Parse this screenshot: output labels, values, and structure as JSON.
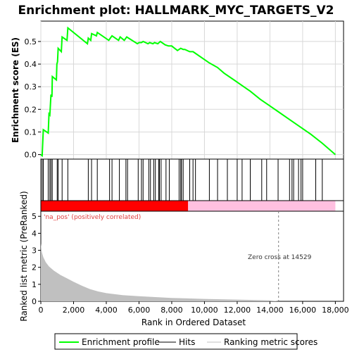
{
  "chart_data": {
    "title": "Enrichment plot: HALLMARK_MYC_TARGETS_V2",
    "x_axis": {
      "label": "Rank in Ordered Dataset",
      "range": [
        0,
        18500
      ],
      "ticks": [
        0,
        2000,
        4000,
        6000,
        8000,
        10000,
        12000,
        14000,
        16000,
        18000
      ],
      "tick_labels": [
        "0",
        "2,000",
        "4,000",
        "6,000",
        "8,000",
        "10,000",
        "12,000",
        "14,000",
        "16,000",
        "18,000"
      ]
    },
    "es_panel": {
      "type": "line",
      "ylabel": "Enrichment score (ES)",
      "ylim": [
        -0.02,
        0.59
      ],
      "yticks": [
        0.0,
        0.1,
        0.2,
        0.3,
        0.4,
        0.5
      ],
      "ytick_labels": [
        "0.0",
        "0.1",
        "0.2",
        "0.3",
        "0.4",
        "0.5"
      ],
      "grid": true,
      "series_name": "Enrichment profile",
      "color": "#00ff00",
      "points": [
        [
          0,
          0
        ],
        [
          80,
          -0.005
        ],
        [
          150,
          0.11
        ],
        [
          450,
          0.095
        ],
        [
          500,
          0.18
        ],
        [
          550,
          0.175
        ],
        [
          620,
          0.265
        ],
        [
          680,
          0.255
        ],
        [
          700,
          0.345
        ],
        [
          950,
          0.33
        ],
        [
          980,
          0.4
        ],
        [
          1020,
          0.41
        ],
        [
          1060,
          0.47
        ],
        [
          1250,
          0.455
        ],
        [
          1300,
          0.52
        ],
        [
          1600,
          0.505
        ],
        [
          1650,
          0.56
        ],
        [
          2850,
          0.49
        ],
        [
          2900,
          0.515
        ],
        [
          3050,
          0.505
        ],
        [
          3100,
          0.535
        ],
        [
          3400,
          0.525
        ],
        [
          3450,
          0.54
        ],
        [
          4150,
          0.505
        ],
        [
          4250,
          0.515
        ],
        [
          4350,
          0.525
        ],
        [
          4750,
          0.505
        ],
        [
          4850,
          0.52
        ],
        [
          5100,
          0.505
        ],
        [
          5250,
          0.52
        ],
        [
          5900,
          0.49
        ],
        [
          6000,
          0.495
        ],
        [
          6150,
          0.495
        ],
        [
          6250,
          0.5
        ],
        [
          6550,
          0.49
        ],
        [
          6650,
          0.495
        ],
        [
          6850,
          0.49
        ],
        [
          6950,
          0.495
        ],
        [
          7150,
          0.49
        ],
        [
          7300,
          0.5
        ],
        [
          7600,
          0.485
        ],
        [
          7800,
          0.48
        ],
        [
          8000,
          0.48
        ],
        [
          8350,
          0.46
        ],
        [
          8450,
          0.465
        ],
        [
          8550,
          0.47
        ],
        [
          8700,
          0.465
        ],
        [
          8800,
          0.465
        ],
        [
          9100,
          0.455
        ],
        [
          9300,
          0.455
        ],
        [
          9400,
          0.45
        ],
        [
          10300,
          0.405
        ],
        [
          10800,
          0.385
        ],
        [
          11200,
          0.36
        ],
        [
          11800,
          0.33
        ],
        [
          12300,
          0.305
        ],
        [
          12800,
          0.28
        ],
        [
          13400,
          0.245
        ],
        [
          13800,
          0.225
        ],
        [
          14500,
          0.19
        ],
        [
          15200,
          0.155
        ],
        [
          15800,
          0.125
        ],
        [
          16500,
          0.09
        ],
        [
          17200,
          0.05
        ],
        [
          18000,
          0.0
        ]
      ]
    },
    "hits_panel": {
      "legend_name": "Hits",
      "positions": [
        80,
        150,
        450,
        550,
        620,
        700,
        1000,
        1060,
        1300,
        1650,
        2900,
        3100,
        3450,
        4200,
        4350,
        4800,
        5200,
        5300,
        5950,
        6150,
        6250,
        6600,
        6700,
        6900,
        7000,
        7200,
        7250,
        7350,
        7650,
        7850,
        8450,
        8550,
        8600,
        8700,
        9100,
        9300,
        9450,
        10300,
        10800,
        11400,
        12000,
        12300,
        12800,
        13500,
        13800,
        14500,
        15200,
        15350,
        15450,
        15750,
        15900,
        16000,
        16800,
        17200
      ]
    },
    "ranking_panel": {
      "ylabel": "Ranked list metric (PreRanked)",
      "ylim": [
        0,
        5.3
      ],
      "yticks": [
        0,
        1,
        2,
        3,
        4,
        5
      ],
      "ytick_labels": [
        "0",
        "1",
        "2",
        "3",
        "4",
        "5"
      ],
      "legend_name": "Ranking metric scores",
      "curve": [
        [
          0,
          3.4
        ],
        [
          60,
          2.9
        ],
        [
          150,
          2.6
        ],
        [
          300,
          2.3
        ],
        [
          500,
          2.05
        ],
        [
          800,
          1.8
        ],
        [
          1200,
          1.55
        ],
        [
          1600,
          1.35
        ],
        [
          2000,
          1.15
        ],
        [
          2500,
          0.92
        ],
        [
          3000,
          0.72
        ],
        [
          3500,
          0.58
        ],
        [
          4000,
          0.48
        ],
        [
          5000,
          0.36
        ],
        [
          6000,
          0.3
        ],
        [
          7000,
          0.25
        ],
        [
          8000,
          0.2
        ],
        [
          9000,
          0.17
        ],
        [
          10000,
          0.14
        ],
        [
          11000,
          0.12
        ],
        [
          12000,
          0.1
        ],
        [
          13000,
          0.08
        ],
        [
          14000,
          0.06
        ],
        [
          14529,
          0.0
        ]
      ],
      "pos_label": "'na_pos' (positively correlated)",
      "zero_cross_label": "Zero cross at 14529",
      "zero_cross": 14529
    },
    "colors": {
      "es_line": "#00ff00",
      "pos_bar": "#ff0000",
      "neg_bar": "#ffc0e0",
      "ranking_fill": "#c0c0c0",
      "zero_line": "#808080"
    }
  },
  "legend": {
    "items": [
      "Enrichment profile",
      "Hits",
      "Ranking metric scores"
    ]
  }
}
